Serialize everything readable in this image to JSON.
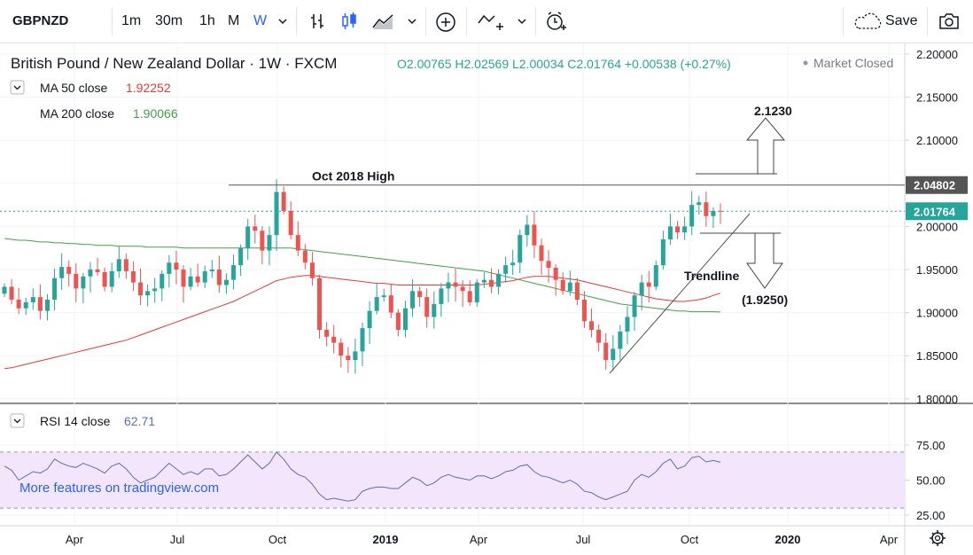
{
  "toolbar": {
    "symbol": "GBPNZD",
    "intervals": [
      "1m",
      "30m",
      "1h",
      "M",
      "W"
    ],
    "active_interval": "W",
    "save_label": "Save",
    "icons": [
      "dropdown-icon",
      "bar-style-icon",
      "candles-icon",
      "area-style-icon",
      "add-compare-icon",
      "indicators-icon",
      "alert-icon",
      "cloud-icon",
      "camera-icon"
    ]
  },
  "header": {
    "title": "British Pound / New Zealand Dollar · 1W · FXCM",
    "ohlc": "O2.00765  H2.02569  L2.00034  C2.01764  +0.00538 (+0.27%)",
    "status": "Market Closed"
  },
  "indicators": {
    "ma50": {
      "label": "MA 50 close",
      "value": "1.92252",
      "color": "#e53935"
    },
    "ma200": {
      "label": "MA 200 close",
      "value": "1.90066",
      "color": "#43a047"
    },
    "rsi": {
      "label": "RSI 14 close",
      "value": "62.71",
      "color": "#5b6fb5"
    }
  },
  "watermark": "More features on tradingview.com",
  "colors": {
    "up": "#26a69a",
    "down": "#ef5350",
    "rsi_band": "#f3e5fc",
    "price_line": "#26a69a"
  },
  "chart_data": {
    "type": "candlestick",
    "title": "British Pound / New Zealand Dollar",
    "x_ticks": [
      "Apr",
      "Jul",
      "Oct",
      "2019",
      "Apr",
      "Jul",
      "Oct",
      "2020",
      "Apr"
    ],
    "price_axis": {
      "ticks": [
        "2.20000",
        "2.15000",
        "2.10000",
        "2.05000",
        "2.00000",
        "1.95000",
        "1.90000",
        "1.85000",
        "1.80000"
      ],
      "range": [
        1.795,
        2.205
      ]
    },
    "rsi_axis": {
      "ticks": [
        "75.00",
        "50.00",
        "25.00"
      ],
      "band": [
        30,
        70
      ]
    },
    "last_price_label": "2.01764",
    "level_label": "2.04802",
    "annotations": {
      "oct_high": "Oct 2018 High",
      "target_up": "2.1230",
      "target_down": "(1.9250)",
      "trendline": "Trendline"
    },
    "closes": [
      1.93,
      1.915,
      1.905,
      1.912,
      1.918,
      1.902,
      1.915,
      1.94,
      1.953,
      1.945,
      1.928,
      1.942,
      1.95,
      1.947,
      1.93,
      1.948,
      1.962,
      1.948,
      1.935,
      1.92,
      1.925,
      1.928,
      1.945,
      1.958,
      1.95,
      1.93,
      1.942,
      1.935,
      1.948,
      1.95,
      1.932,
      1.938,
      1.955,
      1.975,
      2.0,
      1.995,
      1.972,
      1.99,
      2.04,
      2.018,
      1.99,
      1.972,
      1.958,
      1.94,
      1.88,
      1.872,
      1.865,
      1.85,
      1.845,
      1.855,
      1.882,
      1.902,
      1.918,
      1.92,
      1.9,
      1.88,
      1.905,
      1.925,
      1.918,
      1.895,
      1.91,
      1.928,
      1.935,
      1.93,
      1.925,
      1.912,
      1.935,
      1.938,
      1.93,
      1.945,
      1.955,
      1.958,
      1.99,
      2.002,
      1.978,
      1.96,
      1.952,
      1.938,
      1.925,
      1.935,
      1.915,
      1.89,
      1.88,
      1.865,
      1.845,
      1.858,
      1.878,
      1.895,
      1.92,
      1.935,
      1.93,
      1.955,
      1.985,
      2.0,
      1.993,
      2.0,
      2.025,
      2.028,
      2.012,
      2.018,
      2.0176
    ],
    "ma50": [
      1.835,
      1.836,
      1.838,
      1.84,
      1.842,
      1.844,
      1.846,
      1.848,
      1.85,
      1.852,
      1.854,
      1.856,
      1.858,
      1.86,
      1.862,
      1.864,
      1.866,
      1.868,
      1.871,
      1.874,
      1.877,
      1.88,
      1.883,
      1.886,
      1.889,
      1.892,
      1.895,
      1.898,
      1.901,
      1.904,
      1.907,
      1.91,
      1.913,
      1.917,
      1.921,
      1.925,
      1.929,
      1.933,
      1.937,
      1.939,
      1.941,
      1.942,
      1.943,
      1.943,
      1.942,
      1.941,
      1.94,
      1.939,
      1.938,
      1.937,
      1.936,
      1.935,
      1.934,
      1.934,
      1.933,
      1.932,
      1.932,
      1.932,
      1.932,
      1.932,
      1.932,
      1.932,
      1.932,
      1.932,
      1.932,
      1.932,
      1.932,
      1.933,
      1.934,
      1.935,
      1.936,
      1.937,
      1.939,
      1.941,
      1.942,
      1.942,
      1.942,
      1.941,
      1.94,
      1.939,
      1.938,
      1.936,
      1.934,
      1.932,
      1.93,
      1.928,
      1.926,
      1.924,
      1.922,
      1.92,
      1.918,
      1.916,
      1.915,
      1.914,
      1.913,
      1.913,
      1.914,
      1.915,
      1.917,
      1.92,
      1.9225
    ],
    "ma200": [
      1.986,
      1.985,
      1.984,
      1.984,
      1.983,
      1.982,
      1.982,
      1.981,
      1.981,
      1.98,
      1.98,
      1.979,
      1.979,
      1.978,
      1.978,
      1.978,
      1.977,
      1.977,
      1.977,
      1.977,
      1.976,
      1.976,
      1.976,
      1.976,
      1.976,
      1.975,
      1.975,
      1.975,
      1.975,
      1.975,
      1.975,
      1.975,
      1.975,
      1.975,
      1.975,
      1.975,
      1.975,
      1.975,
      1.975,
      1.975,
      1.975,
      1.974,
      1.973,
      1.972,
      1.971,
      1.97,
      1.969,
      1.968,
      1.967,
      1.966,
      1.965,
      1.964,
      1.963,
      1.962,
      1.961,
      1.96,
      1.959,
      1.958,
      1.957,
      1.956,
      1.955,
      1.954,
      1.953,
      1.952,
      1.951,
      1.95,
      1.949,
      1.948,
      1.946,
      1.944,
      1.942,
      1.94,
      1.938,
      1.936,
      1.934,
      1.932,
      1.93,
      1.928,
      1.926,
      1.924,
      1.922,
      1.92,
      1.918,
      1.916,
      1.914,
      1.912,
      1.91,
      1.909,
      1.908,
      1.907,
      1.906,
      1.905,
      1.904,
      1.903,
      1.902,
      1.902,
      1.901,
      1.901,
      1.901,
      1.901,
      1.9007
    ],
    "rsi": [
      60,
      57,
      50,
      53,
      56,
      55,
      58,
      65,
      62,
      60,
      59,
      62,
      60,
      58,
      55,
      60,
      62,
      58,
      52,
      48,
      50,
      52,
      57,
      62,
      58,
      54,
      56,
      54,
      58,
      58,
      53,
      54,
      58,
      63,
      68,
      63,
      58,
      62,
      70,
      65,
      58,
      54,
      52,
      47,
      40,
      36,
      37,
      36,
      35,
      36,
      42,
      44,
      45,
      45,
      44,
      44,
      48,
      52,
      50,
      46,
      48,
      52,
      54,
      52,
      51,
      50,
      53,
      53,
      51,
      53,
      56,
      57,
      60,
      61,
      56,
      53,
      52,
      50,
      48,
      50,
      47,
      42,
      41,
      38,
      36,
      38,
      40,
      42,
      50,
      54,
      52,
      56,
      62,
      65,
      58,
      60,
      66,
      67,
      63,
      64,
      62.71
    ]
  }
}
